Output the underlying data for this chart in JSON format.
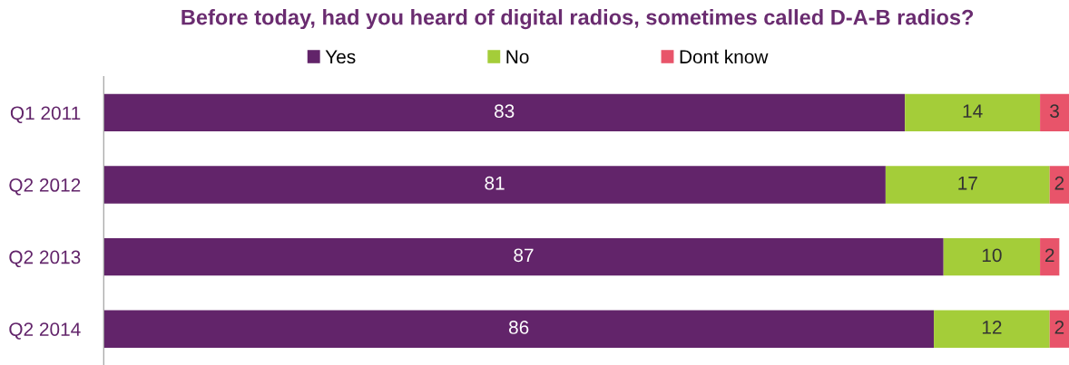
{
  "chart_data": {
    "type": "bar",
    "orientation": "horizontal",
    "stacked": true,
    "title": "Before today, had you heard of digital radios, sometimes called D-A-B radios?",
    "categories": [
      "Q1 2011",
      "Q2 2012",
      "Q2 2013",
      "Q2 2014"
    ],
    "series": [
      {
        "name": "Yes",
        "color": "#62246a",
        "values": [
          83,
          81,
          87,
          86
        ]
      },
      {
        "name": "No",
        "color": "#a4cd39",
        "values": [
          14,
          17,
          10,
          12
        ]
      },
      {
        "name": "Dont know",
        "color": "#e8546a",
        "values": [
          3,
          2,
          2,
          2
        ]
      }
    ],
    "data_labels": true,
    "legend": "top",
    "grid": false
  }
}
